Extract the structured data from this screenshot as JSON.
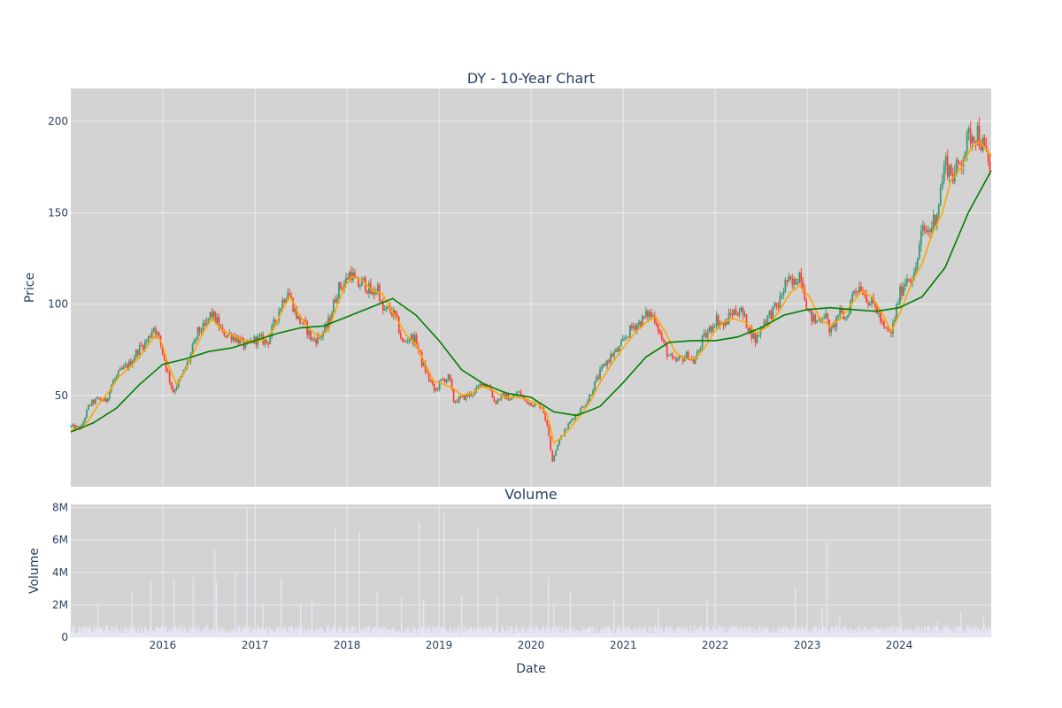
{
  "chart_data": [
    {
      "type": "candlestick",
      "title": "DY - 10-Year Chart",
      "xlabel": "",
      "ylabel": "Price",
      "x_range": [
        "2015-01-01",
        "2024-12-31"
      ],
      "ylim": [
        0,
        218
      ],
      "y_ticks": [
        50,
        100,
        150,
        200
      ],
      "grid": true,
      "colors": {
        "increasing": "#3d9970",
        "decreasing": "#ff4136",
        "ma_short": "#ffa500",
        "ma_long": "#008000",
        "background": "#d3d3d3"
      },
      "price_path": [
        [
          "2015-01-01",
          33
        ],
        [
          "2015-02-10",
          32
        ],
        [
          "2015-03-15",
          45
        ],
        [
          "2015-04-20",
          48
        ],
        [
          "2015-05-20",
          47
        ],
        [
          "2015-06-15",
          57
        ],
        [
          "2015-07-15",
          63
        ],
        [
          "2015-08-20",
          67
        ],
        [
          "2015-09-25",
          75
        ],
        [
          "2015-11-01",
          80
        ],
        [
          "2015-11-25",
          88
        ],
        [
          "2015-12-20",
          80
        ],
        [
          "2016-01-15",
          65
        ],
        [
          "2016-02-10",
          52
        ],
        [
          "2016-03-15",
          60
        ],
        [
          "2016-04-15",
          70
        ],
        [
          "2016-05-20",
          85
        ],
        [
          "2016-06-15",
          87
        ],
        [
          "2016-07-10",
          95
        ],
        [
          "2016-08-05",
          90
        ],
        [
          "2016-08-25",
          84
        ],
        [
          "2016-10-01",
          83
        ],
        [
          "2016-11-01",
          80
        ],
        [
          "2016-11-25",
          76
        ],
        [
          "2016-12-20",
          80
        ],
        [
          "2017-01-20",
          81
        ],
        [
          "2017-02-20",
          79
        ],
        [
          "2017-03-20",
          90
        ],
        [
          "2017-04-15",
          100
        ],
        [
          "2017-05-10",
          108
        ],
        [
          "2017-05-30",
          100
        ],
        [
          "2017-06-20",
          92
        ],
        [
          "2017-07-20",
          88
        ],
        [
          "2017-08-15",
          80
        ],
        [
          "2017-09-15",
          82
        ],
        [
          "2017-10-15",
          88
        ],
        [
          "2017-11-05",
          98
        ],
        [
          "2017-11-25",
          108
        ],
        [
          "2017-12-25",
          112
        ],
        [
          "2018-01-15",
          118
        ],
        [
          "2018-02-10",
          110
        ],
        [
          "2018-03-10",
          112
        ],
        [
          "2018-04-10",
          105
        ],
        [
          "2018-05-05",
          110
        ],
        [
          "2018-05-20",
          96
        ],
        [
          "2018-06-20",
          97
        ],
        [
          "2018-07-15",
          92
        ],
        [
          "2018-08-10",
          78
        ],
        [
          "2018-09-05",
          82
        ],
        [
          "2018-10-01",
          80
        ],
        [
          "2018-10-25",
          68
        ],
        [
          "2018-11-20",
          60
        ],
        [
          "2018-12-15",
          52
        ],
        [
          "2019-01-10",
          58
        ],
        [
          "2019-02-10",
          60
        ],
        [
          "2019-02-28",
          47
        ],
        [
          "2019-03-25",
          48
        ],
        [
          "2019-04-25",
          50
        ],
        [
          "2019-05-25",
          52
        ],
        [
          "2019-06-20",
          57
        ],
        [
          "2019-07-20",
          55
        ],
        [
          "2019-08-10",
          46
        ],
        [
          "2019-09-10",
          50
        ],
        [
          "2019-10-15",
          48
        ],
        [
          "2019-11-10",
          52
        ],
        [
          "2019-12-10",
          47
        ],
        [
          "2020-01-15",
          45
        ],
        [
          "2020-02-15",
          44
        ],
        [
          "2020-03-10",
          30
        ],
        [
          "2020-03-25",
          14
        ],
        [
          "2020-04-20",
          25
        ],
        [
          "2020-05-20",
          32
        ],
        [
          "2020-06-15",
          38
        ],
        [
          "2020-07-15",
          42
        ],
        [
          "2020-08-15",
          48
        ],
        [
          "2020-09-15",
          58
        ],
        [
          "2020-10-15",
          66
        ],
        [
          "2020-11-15",
          72
        ],
        [
          "2020-12-15",
          75
        ],
        [
          "2021-01-10",
          82
        ],
        [
          "2021-02-10",
          88
        ],
        [
          "2021-03-10",
          90
        ],
        [
          "2021-04-10",
          95
        ],
        [
          "2021-05-10",
          92
        ],
        [
          "2021-05-30",
          82
        ],
        [
          "2021-06-25",
          73
        ],
        [
          "2021-07-20",
          68
        ],
        [
          "2021-08-15",
          70
        ],
        [
          "2021-09-15",
          72
        ],
        [
          "2021-10-10",
          68
        ],
        [
          "2021-11-10",
          80
        ],
        [
          "2021-12-10",
          86
        ],
        [
          "2022-01-05",
          92
        ],
        [
          "2022-02-05",
          88
        ],
        [
          "2022-03-05",
          95
        ],
        [
          "2022-04-10",
          97
        ],
        [
          "2022-05-10",
          88
        ],
        [
          "2022-06-10",
          80
        ],
        [
          "2022-07-10",
          90
        ],
        [
          "2022-08-10",
          95
        ],
        [
          "2022-09-10",
          100
        ],
        [
          "2022-10-10",
          113
        ],
        [
          "2022-11-05",
          110
        ],
        [
          "2022-12-05",
          118
        ],
        [
          "2023-01-05",
          95
        ],
        [
          "2023-02-05",
          90
        ],
        [
          "2023-03-10",
          95
        ],
        [
          "2023-04-05",
          84
        ],
        [
          "2023-05-05",
          95
        ],
        [
          "2023-06-05",
          92
        ],
        [
          "2023-07-05",
          108
        ],
        [
          "2023-08-01",
          110
        ],
        [
          "2023-09-01",
          102
        ],
        [
          "2023-10-01",
          98
        ],
        [
          "2023-11-01",
          86
        ],
        [
          "2023-12-01",
          84
        ],
        [
          "2024-01-01",
          105
        ],
        [
          "2024-02-01",
          115
        ],
        [
          "2024-03-01",
          115
        ],
        [
          "2024-04-01",
          140
        ],
        [
          "2024-05-01",
          140
        ],
        [
          "2024-06-01",
          152
        ],
        [
          "2024-07-01",
          178
        ],
        [
          "2024-08-05",
          170
        ],
        [
          "2024-09-05",
          180
        ],
        [
          "2024-10-05",
          192
        ],
        [
          "2024-11-05",
          195
        ],
        [
          "2024-12-01",
          185
        ],
        [
          "2024-12-31",
          172
        ]
      ],
      "ma_short": [
        [
          "2015-01-01",
          31
        ],
        [
          "2015-02-15",
          32
        ],
        [
          "2015-03-20",
          38
        ],
        [
          "2015-04-25",
          46
        ],
        [
          "2015-06-01",
          52
        ],
        [
          "2015-07-10",
          60
        ],
        [
          "2015-08-20",
          65
        ],
        [
          "2015-09-25",
          70
        ],
        [
          "2015-11-01",
          77
        ],
        [
          "2015-12-01",
          83
        ],
        [
          "2015-12-25",
          80
        ],
        [
          "2016-01-25",
          66
        ],
        [
          "2016-02-25",
          56
        ],
        [
          "2016-04-01",
          64
        ],
        [
          "2016-05-10",
          76
        ],
        [
          "2016-06-15",
          86
        ],
        [
          "2016-07-15",
          92
        ],
        [
          "2016-08-20",
          86
        ],
        [
          "2016-10-01",
          83
        ],
        [
          "2016-11-15",
          80
        ],
        [
          "2016-12-20",
          80
        ],
        [
          "2017-02-01",
          80
        ],
        [
          "2017-03-15",
          86
        ],
        [
          "2017-04-20",
          97
        ],
        [
          "2017-05-20",
          104
        ],
        [
          "2017-06-25",
          94
        ],
        [
          "2017-08-01",
          87
        ],
        [
          "2017-09-10",
          82
        ],
        [
          "2017-10-20",
          86
        ],
        [
          "2017-11-25",
          100
        ],
        [
          "2017-12-25",
          110
        ],
        [
          "2018-01-20",
          115
        ],
        [
          "2018-03-01",
          113
        ],
        [
          "2018-04-15",
          107
        ],
        [
          "2018-05-20",
          106
        ],
        [
          "2018-06-20",
          98
        ],
        [
          "2018-07-25",
          90
        ],
        [
          "2018-08-25",
          83
        ],
        [
          "2018-10-01",
          78
        ],
        [
          "2018-11-05",
          68
        ],
        [
          "2018-12-10",
          58
        ],
        [
          "2019-01-20",
          56
        ],
        [
          "2019-02-25",
          54
        ],
        [
          "2019-04-01",
          50
        ],
        [
          "2019-05-10",
          51
        ],
        [
          "2019-06-20",
          55
        ],
        [
          "2019-08-01",
          53
        ],
        [
          "2019-09-15",
          49
        ],
        [
          "2019-11-01",
          49
        ],
        [
          "2019-12-15",
          48
        ],
        [
          "2020-02-01",
          45
        ],
        [
          "2020-03-05",
          40
        ],
        [
          "2020-04-01",
          24
        ],
        [
          "2020-05-01",
          27
        ],
        [
          "2020-06-10",
          33
        ],
        [
          "2020-07-20",
          40
        ],
        [
          "2020-08-25",
          47
        ],
        [
          "2020-10-01",
          57
        ],
        [
          "2020-11-15",
          67
        ],
        [
          "2021-01-01",
          76
        ],
        [
          "2021-02-15",
          84
        ],
        [
          "2021-04-01",
          90
        ],
        [
          "2021-05-10",
          93
        ],
        [
          "2021-06-20",
          84
        ],
        [
          "2021-07-25",
          74
        ],
        [
          "2021-09-01",
          70
        ],
        [
          "2021-10-15",
          70
        ],
        [
          "2021-11-20",
          76
        ],
        [
          "2021-12-25",
          84
        ],
        [
          "2022-02-01",
          90
        ],
        [
          "2022-03-15",
          92
        ],
        [
          "2022-05-01",
          90
        ],
        [
          "2022-06-15",
          84
        ],
        [
          "2022-08-01",
          88
        ],
        [
          "2022-09-15",
          97
        ],
        [
          "2022-10-25",
          106
        ],
        [
          "2022-12-01",
          110
        ],
        [
          "2023-01-10",
          104
        ],
        [
          "2023-02-20",
          92
        ],
        [
          "2023-04-01",
          88
        ],
        [
          "2023-05-15",
          92
        ],
        [
          "2023-06-25",
          100
        ],
        [
          "2023-08-05",
          107
        ],
        [
          "2023-09-15",
          104
        ],
        [
          "2023-10-25",
          95
        ],
        [
          "2023-12-01",
          85
        ],
        [
          "2024-01-10",
          97
        ],
        [
          "2024-02-20",
          112
        ],
        [
          "2024-04-01",
          122
        ],
        [
          "2024-05-10",
          138
        ],
        [
          "2024-06-20",
          150
        ],
        [
          "2024-07-25",
          168
        ],
        [
          "2024-09-01",
          174
        ],
        [
          "2024-10-10",
          185
        ],
        [
          "2024-11-15",
          189
        ],
        [
          "2024-12-31",
          181
        ]
      ],
      "ma_long": [
        [
          "2015-01-01",
          30
        ],
        [
          "2015-04-01",
          35
        ],
        [
          "2015-07-01",
          43
        ],
        [
          "2015-10-01",
          56
        ],
        [
          "2016-01-01",
          67
        ],
        [
          "2016-04-01",
          70
        ],
        [
          "2016-07-01",
          74
        ],
        [
          "2016-10-01",
          76
        ],
        [
          "2017-01-01",
          80
        ],
        [
          "2017-04-01",
          84
        ],
        [
          "2017-07-01",
          87
        ],
        [
          "2017-10-01",
          88
        ],
        [
          "2018-01-01",
          93
        ],
        [
          "2018-04-01",
          98
        ],
        [
          "2018-07-01",
          103
        ],
        [
          "2018-10-01",
          94
        ],
        [
          "2019-01-01",
          80
        ],
        [
          "2019-04-01",
          64
        ],
        [
          "2019-07-01",
          56
        ],
        [
          "2019-10-01",
          51
        ],
        [
          "2020-01-01",
          49
        ],
        [
          "2020-04-01",
          41
        ],
        [
          "2020-07-01",
          39
        ],
        [
          "2020-10-01",
          44
        ],
        [
          "2021-01-01",
          57
        ],
        [
          "2021-04-01",
          71
        ],
        [
          "2021-07-01",
          79
        ],
        [
          "2021-10-01",
          80
        ],
        [
          "2022-01-01",
          80
        ],
        [
          "2022-04-01",
          82
        ],
        [
          "2022-07-01",
          87
        ],
        [
          "2022-10-01",
          94
        ],
        [
          "2023-01-01",
          97
        ],
        [
          "2023-04-01",
          98
        ],
        [
          "2023-07-01",
          97
        ],
        [
          "2023-10-01",
          96
        ],
        [
          "2024-01-01",
          98
        ],
        [
          "2024-04-01",
          104
        ],
        [
          "2024-07-01",
          120
        ],
        [
          "2024-10-01",
          150
        ],
        [
          "2024-12-31",
          173
        ]
      ]
    },
    {
      "type": "bar",
      "title": "Volume",
      "xlabel": "Date",
      "ylabel": "Volume",
      "ylim": [
        0,
        8200000
      ],
      "y_ticks": [
        0,
        2000000,
        4000000,
        6000000,
        8000000
      ],
      "y_tick_labels": [
        "0",
        "2M",
        "4M",
        "6M",
        "8M"
      ],
      "x_ticks": [
        "2016-01-01",
        "2017-01-01",
        "2018-01-01",
        "2019-01-01",
        "2020-01-01",
        "2021-01-01",
        "2022-01-01",
        "2023-01-01",
        "2024-01-01"
      ],
      "x_tick_labels": [
        "2016",
        "2017",
        "2018",
        "2019",
        "2020",
        "2021",
        "2022",
        "2023",
        "2024"
      ],
      "bar_color": "#e6e6f5",
      "baseline_volume": 500000,
      "spikes": [
        [
          "2015-04-20",
          2000000
        ],
        [
          "2015-09-01",
          2800000
        ],
        [
          "2015-11-15",
          3500000
        ],
        [
          "2016-02-15",
          3600000
        ],
        [
          "2016-05-01",
          3700000
        ],
        [
          "2016-07-25",
          5400000
        ],
        [
          "2016-08-01",
          3400000
        ],
        [
          "2016-10-15",
          4000000
        ],
        [
          "2016-11-30",
          7900000
        ],
        [
          "2017-02-01",
          2000000
        ],
        [
          "2017-04-15",
          3600000
        ],
        [
          "2017-07-01",
          2000000
        ],
        [
          "2017-08-15",
          2200000
        ],
        [
          "2017-11-15",
          6800000
        ],
        [
          "2018-02-20",
          6500000
        ],
        [
          "2018-05-01",
          2800000
        ],
        [
          "2018-08-05",
          2500000
        ],
        [
          "2018-10-15",
          7100000
        ],
        [
          "2018-11-01",
          2300000
        ],
        [
          "2019-01-20",
          7700000
        ],
        [
          "2019-04-01",
          2500000
        ],
        [
          "2019-06-05",
          6700000
        ],
        [
          "2019-08-20",
          2500000
        ],
        [
          "2020-03-10",
          3700000
        ],
        [
          "2020-04-01",
          2000000
        ],
        [
          "2020-06-05",
          2800000
        ],
        [
          "2020-11-25",
          2400000
        ],
        [
          "2021-05-20",
          1800000
        ],
        [
          "2021-11-30",
          2300000
        ],
        [
          "2022-11-15",
          3100000
        ],
        [
          "2023-03-01",
          1900000
        ],
        [
          "2023-03-20",
          5900000
        ],
        [
          "2023-05-10",
          1200000
        ],
        [
          "2024-01-10",
          1200000
        ],
        [
          "2024-06-01",
          1000000
        ],
        [
          "2024-09-01",
          1600000
        ],
        [
          "2024-12-01",
          1300000
        ]
      ]
    }
  ]
}
